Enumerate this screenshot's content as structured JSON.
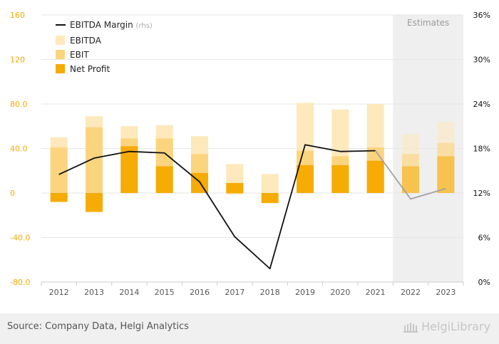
{
  "chart_data": {
    "type": "bar+line",
    "categories": [
      "2012",
      "2013",
      "2014",
      "2015",
      "2016",
      "2017",
      "2018",
      "2019",
      "2020",
      "2021",
      "2022",
      "2023"
    ],
    "estimates_from_index": 10,
    "estimates_label": "Estimates",
    "left_axis": {
      "min": -80,
      "max": 160,
      "ticks": [
        "160",
        "120",
        "80.0",
        "40.0",
        "0",
        "-40.0",
        "-80.0"
      ]
    },
    "right_axis": {
      "min": 0,
      "max": 36,
      "ticks": [
        "36%",
        "30%",
        "24%",
        "18%",
        "12%",
        "6%",
        "0%"
      ]
    },
    "series": [
      {
        "name": "EBITDA",
        "axis": "left",
        "kind": "bar",
        "color": "#fde9bb",
        "values": [
          50,
          69,
          60,
          61,
          51,
          26,
          17,
          81,
          75,
          80,
          53,
          64
        ]
      },
      {
        "name": "EBIT",
        "axis": "left",
        "kind": "bar",
        "color": "#fbd47e",
        "values": [
          41,
          59,
          49,
          49,
          35,
          -1,
          0,
          38,
          33,
          41,
          35,
          45
        ]
      },
      {
        "name": "Net Profit",
        "axis": "left",
        "kind": "bar",
        "color": "#f6ab05",
        "values": [
          -8,
          -17,
          42,
          24,
          18,
          9,
          -9,
          25,
          25,
          29,
          24,
          33
        ]
      },
      {
        "name": "EBITDA Margin",
        "name_suffix": "(rhs)",
        "axis": "right",
        "kind": "line",
        "color": "#111111",
        "values": [
          14.5,
          16.7,
          17.6,
          17.4,
          13.5,
          6.1,
          1.8,
          18.5,
          17.6,
          17.7,
          11.2,
          12.6
        ]
      }
    ],
    "legend_position": "top-left",
    "colors": {
      "left_axis": "#f6ab05",
      "right_axis": "#111111",
      "estimates_band": "#efefef",
      "line_estimate": "#a3a3a3"
    }
  },
  "footer": {
    "source": "Source: Company Data, Helgi Analytics",
    "brand": "HelgiLibrary"
  }
}
